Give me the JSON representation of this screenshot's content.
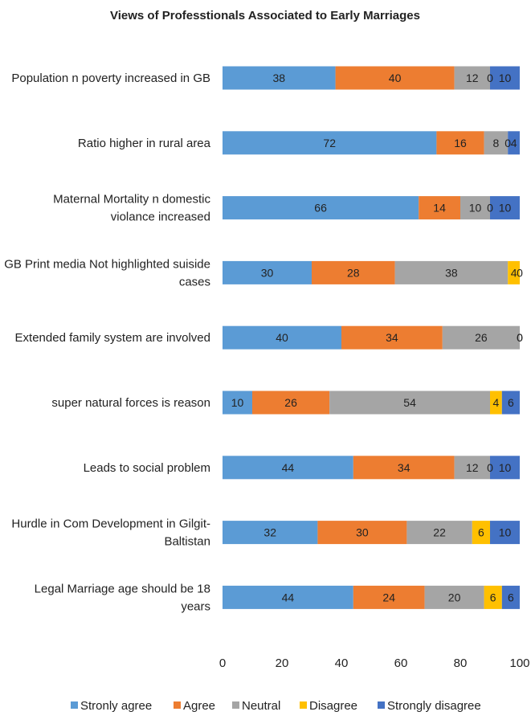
{
  "chart_data": {
    "type": "bar",
    "orientation": "horizontal",
    "stacked": true,
    "title": "Views of Professtionals Associated to Early Marriages",
    "xlabel": "",
    "ylabel": "",
    "xlim": [
      0,
      100
    ],
    "xticks": [
      "0",
      "20",
      "40",
      "60",
      "80",
      "100"
    ],
    "grid": false,
    "legend_position": "bottom",
    "categories": [
      [
        "Population n poverty increased in GB"
      ],
      [
        "Ratio higher in rural area"
      ],
      [
        "Maternal Mortality n domestic",
        "violance increased"
      ],
      [
        "GB Print media Not highlighted suiside",
        "cases"
      ],
      [
        "Extended family system are involved"
      ],
      [
        "super natural forces is reason"
      ],
      [
        "Leads to social problem"
      ],
      [
        "Hurdle in Com Development in Gilgit-",
        "Baltistan"
      ],
      [
        "Legal Marriage age should be 18",
        "years"
      ]
    ],
    "series": [
      {
        "name": "Stronly agree",
        "color": "#5b9bd5",
        "values": [
          38,
          72,
          66,
          30,
          40,
          10,
          44,
          32,
          44
        ]
      },
      {
        "name": "Agree",
        "color": "#ed7d31",
        "values": [
          40,
          16,
          14,
          28,
          34,
          26,
          34,
          30,
          24
        ]
      },
      {
        "name": "Neutral",
        "color": "#a5a5a5",
        "values": [
          12,
          8,
          10,
          38,
          26,
          54,
          12,
          22,
          20
        ]
      },
      {
        "name": "Disagree",
        "color": "#ffc000",
        "values": [
          0,
          0,
          0,
          4,
          0,
          4,
          0,
          6,
          6
        ]
      },
      {
        "name": "Strongly disagree",
        "color": "#4472c4",
        "values": [
          10,
          4,
          10,
          0,
          0,
          6,
          10,
          10,
          6
        ]
      }
    ]
  }
}
